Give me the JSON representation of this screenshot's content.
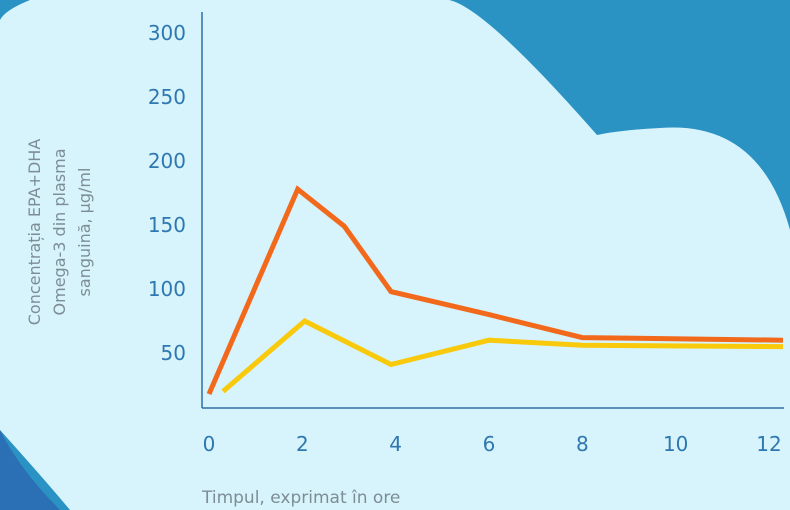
{
  "colors": {
    "background_blue": "#2A93C3",
    "background_dark_blue": "#2B6FB4",
    "cloud": "#D7F3FB",
    "axis_text": "#2F78AF",
    "label_text": "#7D8D96",
    "axis_line": "#2F6FA8",
    "series_orange": "#F2691C",
    "series_yellow": "#F9C90B"
  },
  "chart_data": {
    "type": "line",
    "xlabel": "Timpul, exprimat în ore",
    "ylabel_lines": [
      "Concentrația EPA+DHA",
      "Omega-3 din plasma",
      "sanguină, µg/ml"
    ],
    "x_ticks": [
      0,
      2,
      4,
      6,
      8,
      10,
      12
    ],
    "y_ticks": [
      50,
      100,
      150,
      200,
      250,
      300
    ],
    "xlim": [
      0,
      12.3
    ],
    "ylim": [
      20,
      310
    ],
    "grid": false,
    "legend": "none",
    "series": [
      {
        "color": "#F2691C",
        "x": [
          0,
          1.9,
          2.9,
          3.9,
          6,
          8,
          12.3
        ],
        "y": [
          18,
          178,
          149,
          98,
          80,
          62,
          60
        ]
      },
      {
        "color": "#F9C90B",
        "x": [
          0.3,
          2.05,
          3.9,
          6,
          8,
          12.3
        ],
        "y": [
          20,
          75,
          41,
          60,
          56,
          55
        ]
      }
    ]
  }
}
